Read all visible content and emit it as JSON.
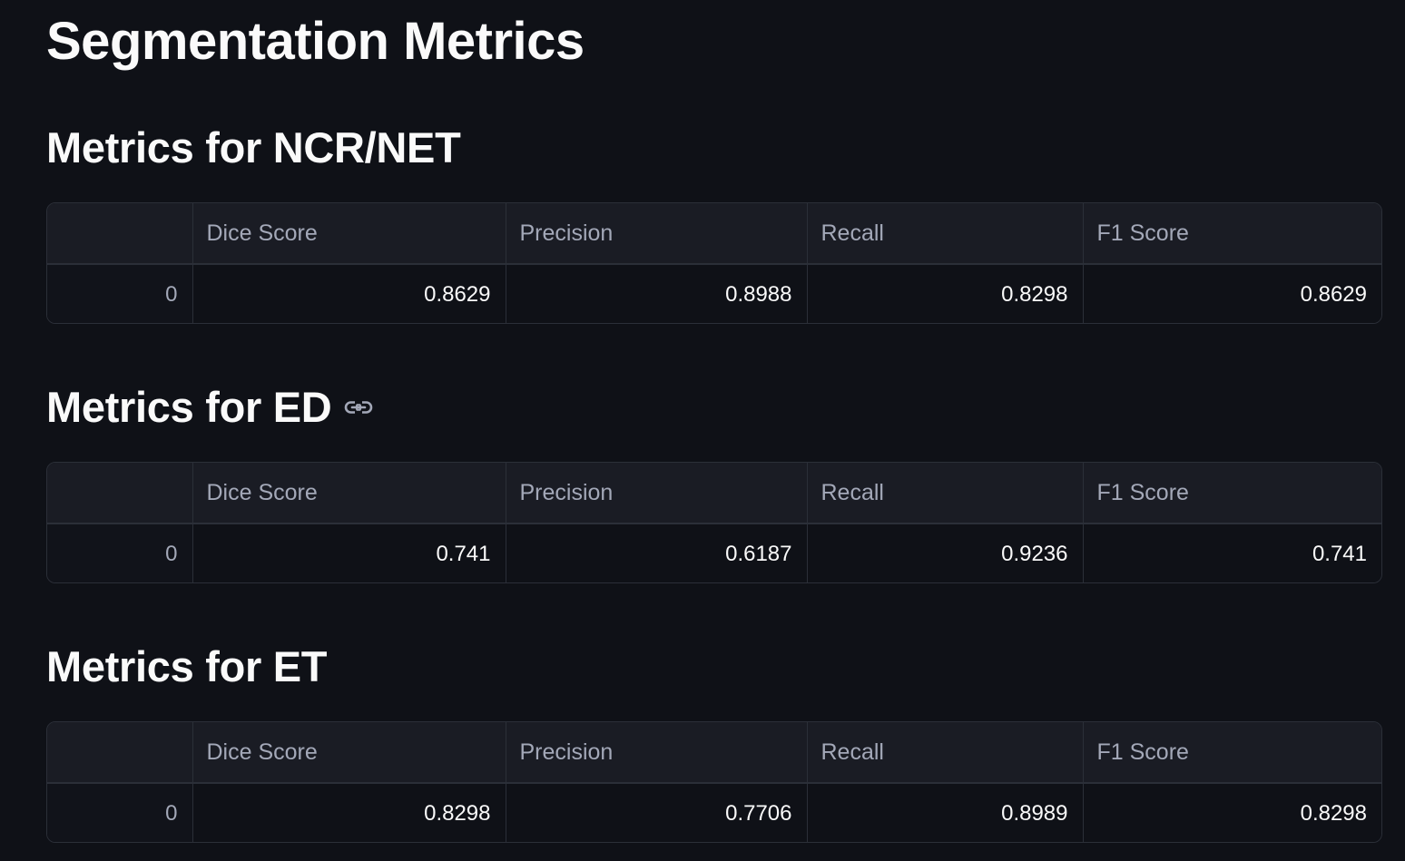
{
  "page": {
    "title": "Segmentation Metrics"
  },
  "icons": {
    "link": "link-icon"
  },
  "colors": {
    "background": "#0f1117",
    "text": "#fafafa",
    "muted_text": "#a3a8b8",
    "header_bg": "#1a1c24",
    "border": "#2b2f38"
  },
  "sections": [
    {
      "heading": "Metrics for NCR/NET",
      "table": {
        "columns": [
          "",
          "Dice Score",
          "Precision",
          "Recall",
          "F1 Score"
        ],
        "rows": [
          {
            "index": "0",
            "dice": "0.8629",
            "precision": "0.8988",
            "recall": "0.8298",
            "f1": "0.8629"
          }
        ]
      }
    },
    {
      "heading": "Metrics for ED",
      "table": {
        "columns": [
          "",
          "Dice Score",
          "Precision",
          "Recall",
          "F1 Score"
        ],
        "rows": [
          {
            "index": "0",
            "dice": "0.741",
            "precision": "0.6187",
            "recall": "0.9236",
            "f1": "0.741"
          }
        ]
      }
    },
    {
      "heading": "Metrics for ET",
      "table": {
        "columns": [
          "",
          "Dice Score",
          "Precision",
          "Recall",
          "F1 Score"
        ],
        "rows": [
          {
            "index": "0",
            "dice": "0.8298",
            "precision": "0.7706",
            "recall": "0.8989",
            "f1": "0.8298"
          }
        ]
      }
    }
  ]
}
